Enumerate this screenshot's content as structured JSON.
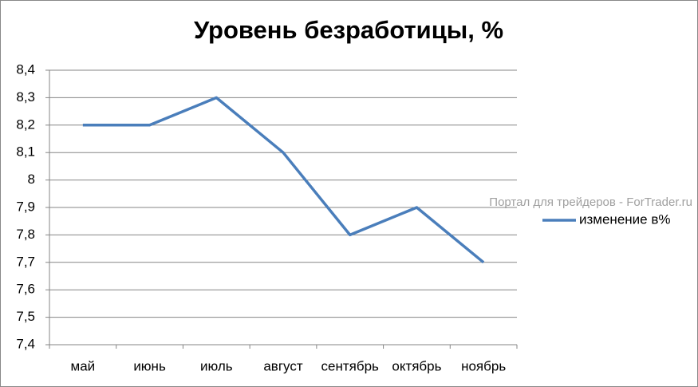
{
  "chart_data": {
    "type": "line",
    "title": "Уровень безработицы, %",
    "categories": [
      "май",
      "июнь",
      "июль",
      "август",
      "сентябрь",
      "октябрь",
      "ноябрь"
    ],
    "series": [
      {
        "name": "изменение в%",
        "color": "#4a7ebb",
        "values": [
          8.2,
          8.2,
          8.3,
          8.1,
          7.8,
          7.9,
          7.7
        ]
      }
    ],
    "ylim": [
      7.4,
      8.4
    ],
    "yticks": [
      {
        "value": 7.4,
        "label": "7,4"
      },
      {
        "value": 7.5,
        "label": "7,5"
      },
      {
        "value": 7.6,
        "label": "7,6"
      },
      {
        "value": 7.7,
        "label": "7,7"
      },
      {
        "value": 7.8,
        "label": "7,8"
      },
      {
        "value": 7.9,
        "label": "7,9"
      },
      8,
      {
        "value": 8.1,
        "label": "8,1"
      },
      {
        "value": 8.2,
        "label": "8,2"
      },
      {
        "value": 8.3,
        "label": "8,3"
      },
      {
        "value": 8.4,
        "label": "8,4"
      }
    ],
    "grid": true,
    "legend": "right",
    "watermark": "Портал для трейдеров - ForTrader.ru"
  }
}
